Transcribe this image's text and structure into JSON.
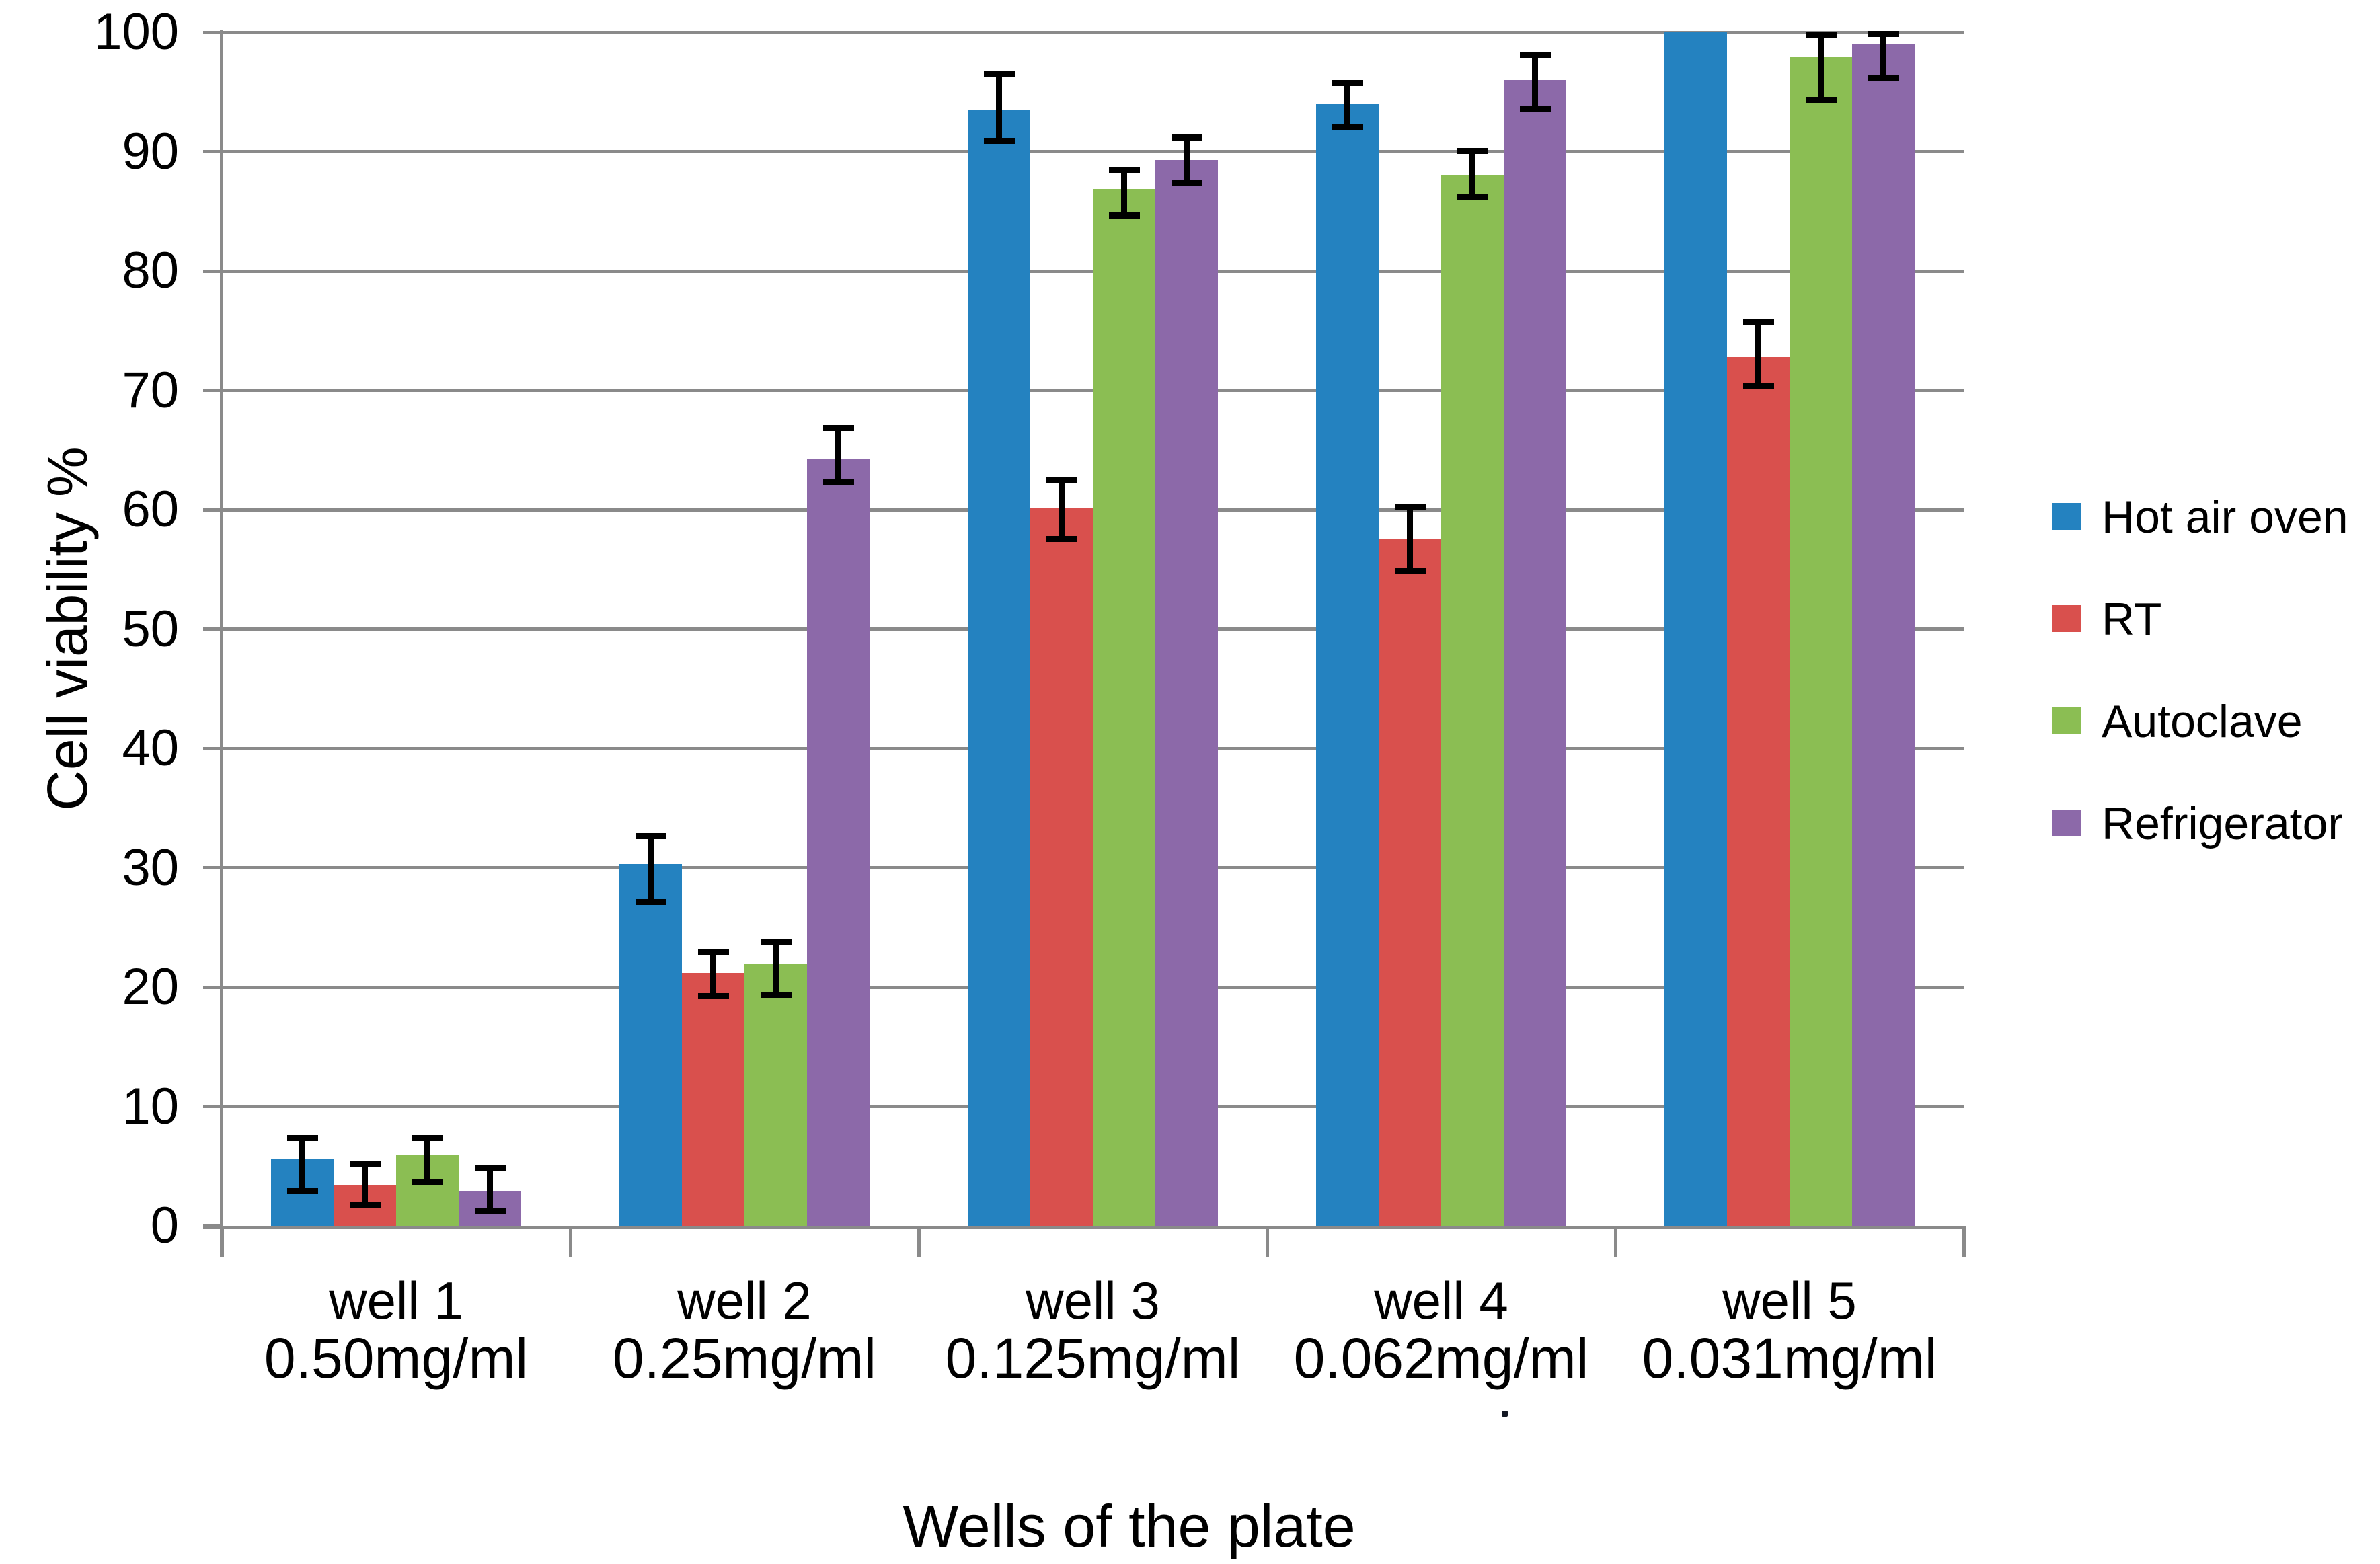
{
  "chart_data": {
    "type": "bar",
    "title": "",
    "xlabel": "Wells of the plate",
    "ylabel": "Cell viability %",
    "ylim": [
      0,
      100
    ],
    "ytick_interval": 10,
    "ytick_labels": [
      "0",
      "10",
      "20",
      "30",
      "40",
      "50",
      "60",
      "70",
      "80",
      "90",
      "100"
    ],
    "grid": true,
    "legend_position": "right",
    "categories": [
      {
        "well": "well 1",
        "concentration": "0.50mg/ml"
      },
      {
        "well": "well 2",
        "concentration": "0.25mg/ml"
      },
      {
        "well": "well 3",
        "concentration": "0.125mg/ml"
      },
      {
        "well": "well 4",
        "concentration": "0.062mg/ml"
      },
      {
        "well": "well 5",
        "concentration": "0.031mg/ml"
      }
    ],
    "series": [
      {
        "name": "Hot air oven",
        "color": "#2482C0",
        "values": [
          5.6,
          30.3,
          93.5,
          94.0,
          100.0
        ],
        "error_low": [
          2.9,
          27.1,
          90.9,
          92.0,
          null
        ],
        "error_high": [
          7.4,
          32.7,
          96.5,
          95.8,
          null
        ]
      },
      {
        "name": "RT",
        "color": "#D9504D",
        "values": [
          3.4,
          21.2,
          60.1,
          57.6,
          72.8
        ],
        "error_low": [
          1.7,
          19.2,
          57.5,
          54.8,
          70.3
        ],
        "error_high": [
          5.2,
          23.0,
          62.5,
          60.3,
          75.8
        ]
      },
      {
        "name": "Autoclave",
        "color": "#8BBE53",
        "values": [
          5.9,
          22.0,
          86.9,
          88.0,
          97.9
        ],
        "error_low": [
          3.6,
          19.3,
          84.6,
          86.2,
          94.3
        ],
        "error_high": [
          7.4,
          23.8,
          88.5,
          90.1,
          99.8
        ]
      },
      {
        "name": "Refrigerator",
        "color": "#8C69A9",
        "values": [
          2.9,
          64.3,
          89.3,
          96.0,
          99.0
        ],
        "error_low": [
          1.2,
          62.3,
          87.3,
          93.5,
          96.1
        ],
        "error_high": [
          4.9,
          66.9,
          91.2,
          98.1,
          99.9
        ]
      }
    ],
    "colors": {
      "gridline": "#8A8A8A",
      "axis": "#8A8A8A",
      "error_bar": "#000000",
      "text": "#000000"
    },
    "stray_mark": "."
  }
}
